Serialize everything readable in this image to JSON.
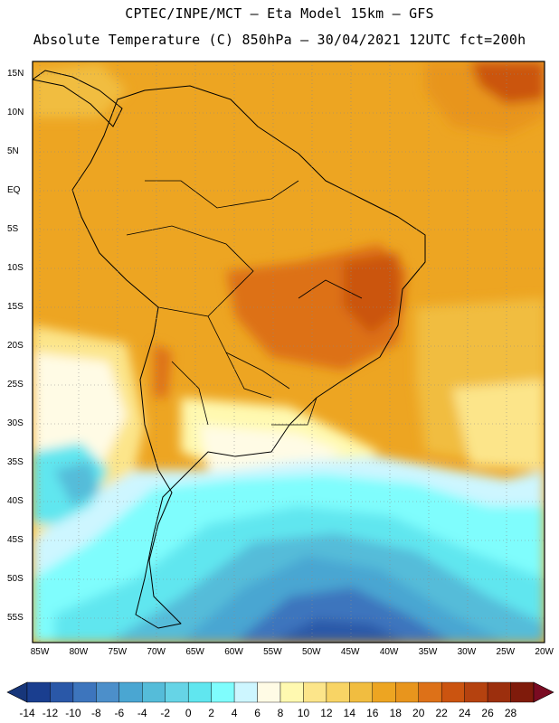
{
  "header": {
    "line1": "CPTEC/INPE/MCT –   Eta Model 15km – GFS",
    "line2": "Absolute Temperature (C) 850hPa – 30/04/2021 12UTC fct=200h"
  },
  "axes": {
    "lat_labels": [
      "15N",
      "10N",
      "5N",
      "EQ",
      "5S",
      "10S",
      "15S",
      "20S",
      "25S",
      "30S",
      "35S",
      "40S",
      "45S",
      "50S",
      "55S"
    ],
    "lon_labels": [
      "85W",
      "80W",
      "75W",
      "70W",
      "65W",
      "60W",
      "55W",
      "50W",
      "45W",
      "40W",
      "35W",
      "30W",
      "25W",
      "20W"
    ]
  },
  "colorbar": {
    "labels": [
      "-14",
      "-12",
      "-10",
      "-8",
      "-6",
      "-4",
      "-2",
      "0",
      "2",
      "4",
      "6",
      "8",
      "10",
      "12",
      "14",
      "16",
      "18",
      "20",
      "22",
      "24",
      "26",
      "28"
    ],
    "colors": [
      "#1a3e8f",
      "#2a58a8",
      "#3d75bd",
      "#4c8fca",
      "#4aa6d2",
      "#55bcd9",
      "#66d4e6",
      "#60e6ef",
      "#7ffdfd",
      "#cdf6ff",
      "#fffbe5",
      "#fff9b0",
      "#fce58a",
      "#f8d465",
      "#f1bd40",
      "#eda522",
      "#e8951d",
      "#dd7118",
      "#cb5410",
      "#b5420f",
      "#9c2f0d",
      "#7f1b0b"
    ],
    "under_color": "#17367a",
    "over_color": "#7a0b22"
  },
  "map": {
    "field": "850hPa Absolute Temperature (C)",
    "colors": {
      "hot": "#e8951d",
      "warm": "#eda522",
      "mild": "#f1bd40",
      "yellow": "#fce58a",
      "pale": "#fff9b0",
      "cream": "#fffbe5",
      "iceblue": "#cdf6ff",
      "cyan": "#7ffdfd",
      "teal": "#60e6ef",
      "blue1": "#55bcd9",
      "blue2": "#4aa6d2",
      "blue3": "#3d75bd",
      "navy": "#2a58a8",
      "deep": "#1a3e8f",
      "hot2": "#dd7118",
      "hot3": "#cb5410"
    }
  }
}
